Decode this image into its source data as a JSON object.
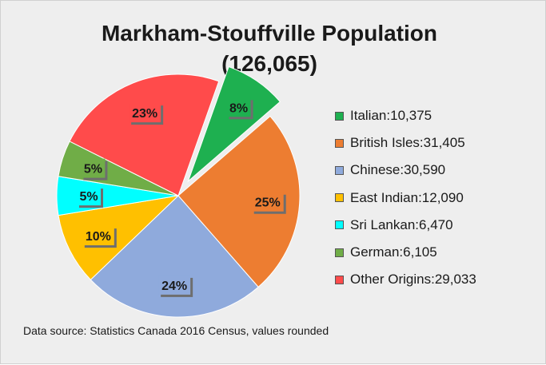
{
  "chart_data": {
    "type": "pie",
    "title": "Markham-Stouffville Population",
    "subtitle": "(126,065)",
    "slices": [
      {
        "name": "Italian",
        "value": 10375,
        "value_label": "10,375",
        "percent_label": "8%",
        "color": "#1eb050",
        "exploded": true
      },
      {
        "name": "British Isles",
        "value": 31405,
        "value_label": "31,405",
        "percent_label": "25%",
        "color": "#ed7d31",
        "exploded": false
      },
      {
        "name": "Chinese",
        "value": 30590,
        "value_label": "30,590",
        "percent_label": "24%",
        "color": "#8faadc",
        "exploded": false
      },
      {
        "name": "East Indian",
        "value": 12090,
        "value_label": "12,090",
        "percent_label": "10%",
        "color": "#ffc000",
        "exploded": false
      },
      {
        "name": "Sri Lankan",
        "value": 6470,
        "value_label": "6,470",
        "percent_label": "5%",
        "color": "#00ffff",
        "exploded": false
      },
      {
        "name": "German",
        "value": 6105,
        "value_label": "6,105",
        "percent_label": "5%",
        "color": "#70ad47",
        "exploded": false
      },
      {
        "name": "Other Origins",
        "value": 29033,
        "value_label": "29,033",
        "percent_label": "23%",
        "color": "#ff4b4b",
        "exploded": false
      }
    ],
    "legend": {
      "placement": "right"
    }
  },
  "footnote": "Data source: Statistics Canada 2016 Census, values rounded"
}
